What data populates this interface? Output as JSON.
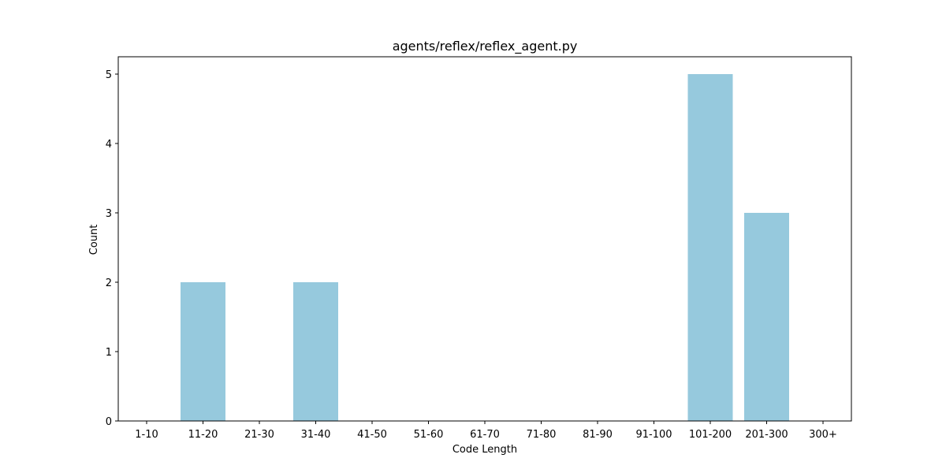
{
  "chart_data": {
    "type": "bar",
    "title": "agents/reflex/reflex_agent.py",
    "xlabel": "Code Length",
    "ylabel": "Count",
    "categories": [
      "1-10",
      "11-20",
      "21-30",
      "31-40",
      "41-50",
      "51-60",
      "61-70",
      "71-80",
      "81-90",
      "91-100",
      "101-200",
      "201-300",
      "300+"
    ],
    "values": [
      0,
      2,
      0,
      2,
      0,
      0,
      0,
      0,
      0,
      0,
      5,
      3,
      0
    ],
    "ylim": [
      0,
      5.25
    ],
    "yticks": [
      0,
      1,
      2,
      3,
      4,
      5
    ],
    "bar_color": "#96c9dd",
    "grid": false,
    "legend": "none"
  }
}
